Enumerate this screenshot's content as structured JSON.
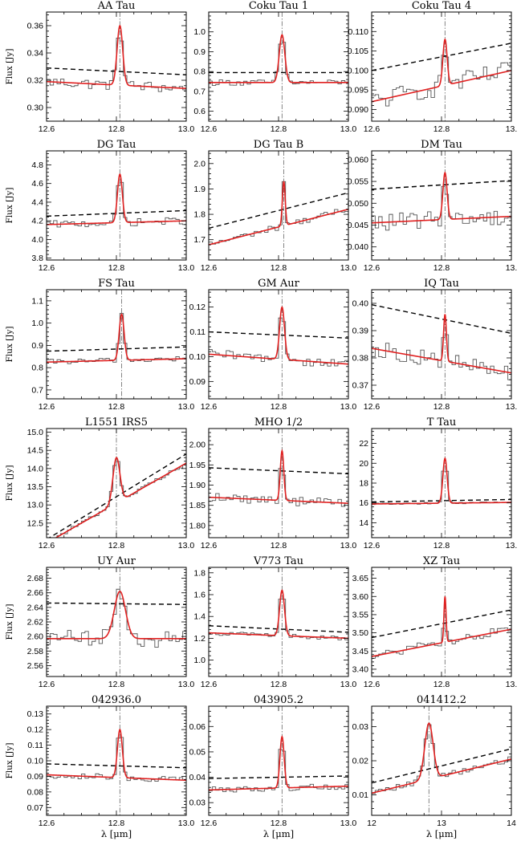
{
  "chart_data": [
    {
      "type": "line",
      "title": "AA Tau",
      "ylabel": "Flux [Jy]",
      "xlabel": "",
      "xlim": [
        12.6,
        13.0
      ],
      "ylim": [
        0.29,
        0.37
      ],
      "xticks": [
        12.6,
        12.8,
        13.0
      ],
      "xtick_labels": [
        "12.6",
        "12.8",
        "13.0"
      ],
      "yticks": [
        0.3,
        0.32,
        0.34,
        0.36
      ],
      "ytick_labels": [
        "0.30",
        "0.32",
        "0.34",
        "0.36"
      ],
      "line_center": 12.81,
      "line_width": 0.008,
      "continuum": [
        0.319,
        0.314
      ],
      "peak": 0.36,
      "dashed": [
        0.329,
        0.324
      ],
      "noise": 0.004
    },
    {
      "type": "line",
      "title": "Coku Tau 1",
      "ylabel": "",
      "xlabel": "",
      "xlim": [
        12.6,
        13.0
      ],
      "ylim": [
        0.55,
        1.1
      ],
      "xticks": [
        12.6,
        12.8,
        13.0
      ],
      "xtick_labels": [
        "12.6",
        "12.8",
        "13.0"
      ],
      "yticks": [
        0.6,
        0.7,
        0.8,
        0.9,
        1.0
      ],
      "ytick_labels": [
        "0.6",
        "0.7",
        "0.8",
        "0.9",
        "1.0"
      ],
      "line_center": 12.81,
      "line_width": 0.008,
      "continuum": [
        0.745,
        0.745
      ],
      "peak": 0.985,
      "dashed": [
        0.795,
        0.795
      ],
      "noise": 0.015
    },
    {
      "type": "line",
      "title": "Coku Tau 4",
      "ylabel": "",
      "xlabel": "",
      "xlim": [
        12.6,
        13.0
      ],
      "ylim": [
        0.087,
        0.115
      ],
      "xticks": [
        12.6,
        12.8,
        13.0
      ],
      "xtick_labels": [
        "12.6",
        "12.8",
        "13."
      ],
      "yticks": [
        0.09,
        0.095,
        0.1,
        0.105,
        0.11
      ],
      "ytick_labels": [
        "0.090",
        "0.095",
        "0.100",
        "0.105",
        "0.110"
      ],
      "line_center": 12.81,
      "line_width": 0.006,
      "continuum": [
        0.092,
        0.1
      ],
      "peak": 0.108,
      "dashed": [
        0.1,
        0.107
      ],
      "noise": 0.0025
    },
    {
      "type": "line",
      "title": "DG Tau",
      "ylabel": "Flux [Jy]",
      "xlabel": "",
      "xlim": [
        12.6,
        13.0
      ],
      "ylim": [
        3.78,
        4.95
      ],
      "xticks": [
        12.6,
        12.8,
        13.0
      ],
      "xtick_labels": [
        "12.6",
        "12.8",
        "13.0"
      ],
      "yticks": [
        3.8,
        4.0,
        4.2,
        4.4,
        4.6,
        4.8
      ],
      "ytick_labels": [
        "3.8",
        "4.0",
        "4.2",
        "4.4",
        "4.6",
        "4.8"
      ],
      "line_center": 12.81,
      "line_width": 0.007,
      "continuum": [
        4.16,
        4.2
      ],
      "peak": 4.7,
      "dashed": [
        4.25,
        4.31
      ],
      "noise": 0.04
    },
    {
      "type": "line",
      "title": "DG Tau B",
      "ylabel": "",
      "xlabel": "",
      "xlim": [
        12.6,
        13.0
      ],
      "ylim": [
        1.62,
        2.05
      ],
      "xticks": [
        12.6,
        12.8,
        13.0
      ],
      "xtick_labels": [
        "12.6",
        "12.8",
        "13.0"
      ],
      "yticks": [
        1.7,
        1.8,
        1.9,
        2.0
      ],
      "ytick_labels": [
        "1.7",
        "1.8",
        "1.9",
        "2.0"
      ],
      "line_center": 12.815,
      "line_width": 0.004,
      "continuum": [
        1.68,
        1.82
      ],
      "peak": 1.93,
      "dashed": [
        1.745,
        1.885
      ],
      "noise": 0.012
    },
    {
      "type": "line",
      "title": "DM Tau",
      "ylabel": "",
      "xlabel": "",
      "xlim": [
        12.6,
        13.0
      ],
      "ylim": [
        0.037,
        0.062
      ],
      "xticks": [
        12.6,
        12.8,
        13.0
      ],
      "xtick_labels": [
        "12.6",
        "12.8",
        "13."
      ],
      "yticks": [
        0.04,
        0.045,
        0.05,
        0.055,
        0.06
      ],
      "ytick_labels": [
        "0.040",
        "0.045",
        "0.050",
        "0.055",
        "0.060"
      ],
      "line_center": 12.81,
      "line_width": 0.006,
      "continuum": [
        0.0455,
        0.047
      ],
      "peak": 0.057,
      "dashed": [
        0.0532,
        0.0552
      ],
      "noise": 0.002
    },
    {
      "type": "line",
      "title": "FS Tau",
      "ylabel": "Flux [Jy]",
      "xlabel": "",
      "xlim": [
        12.6,
        13.0
      ],
      "ylim": [
        0.66,
        1.15
      ],
      "xticks": [
        12.6,
        12.8,
        13.0
      ],
      "xtick_labels": [
        "12.6",
        "12.8",
        "13.0"
      ],
      "yticks": [
        0.7,
        0.8,
        0.9,
        1.0,
        1.1
      ],
      "ytick_labels": [
        "0.7",
        "0.8",
        "0.9",
        "1.0",
        "1.1"
      ],
      "line_center": 12.815,
      "line_width": 0.007,
      "continuum": [
        0.825,
        0.84
      ],
      "peak": 1.04,
      "dashed": [
        0.874,
        0.893
      ],
      "noise": 0.012
    },
    {
      "type": "line",
      "title": "GM Aur",
      "ylabel": "",
      "xlabel": "",
      "xlim": [
        12.6,
        13.0
      ],
      "ylim": [
        0.083,
        0.127
      ],
      "xticks": [
        12.6,
        12.8,
        13.0
      ],
      "xtick_labels": [
        "12.6",
        "12.8",
        "13.0"
      ],
      "yticks": [
        0.09,
        0.1,
        0.11,
        0.12
      ],
      "ytick_labels": [
        "0.09",
        "0.10",
        "0.11",
        "0.12"
      ],
      "line_center": 12.81,
      "line_width": 0.007,
      "continuum": [
        0.101,
        0.097
      ],
      "peak": 0.12,
      "dashed": [
        0.11,
        0.1075
      ],
      "noise": 0.002
    },
    {
      "type": "line",
      "title": "IQ Tau",
      "ylabel": "",
      "xlabel": "",
      "xlim": [
        12.6,
        13.0
      ],
      "ylim": [
        0.365,
        0.405
      ],
      "xticks": [
        12.6,
        12.8,
        13.0
      ],
      "xtick_labels": [
        "12.6",
        "12.8",
        "13."
      ],
      "yticks": [
        0.37,
        0.38,
        0.39,
        0.4
      ],
      "ytick_labels": [
        "0.37",
        "0.38",
        "0.39",
        "0.40"
      ],
      "line_center": 12.81,
      "line_width": 0.004,
      "continuum": [
        0.3835,
        0.3745
      ],
      "peak": 0.396,
      "dashed": [
        0.3995,
        0.389
      ],
      "noise": 0.003
    },
    {
      "type": "line",
      "title": "L1551 IRS5",
      "ylabel": "Flux [Jy]",
      "xlabel": "",
      "xlim": [
        12.6,
        13.0
      ],
      "ylim": [
        12.1,
        15.1
      ],
      "xticks": [
        12.6,
        12.8,
        13.0
      ],
      "xtick_labels": [
        "12.6",
        "12.8",
        "13.0"
      ],
      "yticks": [
        12.5,
        13.0,
        13.5,
        14.0,
        14.5,
        15.0
      ],
      "ytick_labels": [
        "12.5",
        "13.0",
        "13.5",
        "14.0",
        "14.5",
        "15.0"
      ],
      "line_center": 12.8,
      "line_width": 0.01,
      "continuum": [
        11.95,
        14.15
      ],
      "peak": 14.3,
      "dashed": [
        12.05,
        14.4
      ],
      "noise": 0.05
    },
    {
      "type": "line",
      "title": "MHO 1/2",
      "ylabel": "",
      "xlabel": "",
      "xlim": [
        12.6,
        13.0
      ],
      "ylim": [
        1.77,
        2.04
      ],
      "xticks": [
        12.6,
        12.8,
        13.0
      ],
      "xtick_labels": [
        "12.6",
        "12.8",
        "13.0"
      ],
      "yticks": [
        1.8,
        1.85,
        1.9,
        1.95,
        2.0
      ],
      "ytick_labels": [
        "1.80",
        "1.85",
        "1.90",
        "1.95",
        "2.00"
      ],
      "line_center": 12.81,
      "line_width": 0.005,
      "continuum": [
        1.87,
        1.855
      ],
      "peak": 1.985,
      "dashed": [
        1.943,
        1.928
      ],
      "noise": 0.012
    },
    {
      "type": "line",
      "title": "T Tau",
      "ylabel": "",
      "xlabel": "",
      "xlim": [
        12.6,
        13.0
      ],
      "ylim": [
        12.5,
        23.5
      ],
      "xticks": [
        12.6,
        12.8,
        13.0
      ],
      "xtick_labels": [
        "12.6",
        "12.8",
        "13."
      ],
      "yticks": [
        14,
        16,
        18,
        20,
        22
      ],
      "ytick_labels": [
        "14",
        "16",
        "18",
        "20",
        "22"
      ],
      "line_center": 12.81,
      "line_width": 0.006,
      "continuum": [
        15.9,
        16.05
      ],
      "peak": 20.5,
      "dashed": [
        16.1,
        16.35
      ],
      "noise": 0.08
    },
    {
      "type": "line",
      "title": "UY Aur",
      "ylabel": "Flux [Jy]",
      "xlabel": "",
      "xlim": [
        12.6,
        13.0
      ],
      "ylim": [
        2.545,
        2.695
      ],
      "xticks": [
        12.6,
        12.8,
        13.0
      ],
      "xtick_labels": [
        "12.6",
        "12.8",
        "13.0"
      ],
      "yticks": [
        2.56,
        2.58,
        2.6,
        2.62,
        2.64,
        2.66,
        2.68
      ],
      "ytick_labels": [
        "2.56",
        "2.58",
        "2.60",
        "2.62",
        "2.64",
        "2.66",
        "2.68"
      ],
      "line_center": 12.81,
      "line_width": 0.016,
      "continuum": [
        2.597,
        2.597
      ],
      "peak": 2.662,
      "dashed": [
        2.646,
        2.644
      ],
      "noise": 0.012
    },
    {
      "type": "line",
      "title": "V773 Tau",
      "ylabel": "",
      "xlabel": "",
      "xlim": [
        12.6,
        13.0
      ],
      "ylim": [
        0.85,
        1.85
      ],
      "xticks": [
        12.6,
        12.8,
        13.0
      ],
      "xtick_labels": [
        "12.6",
        "12.8",
        "13.0"
      ],
      "yticks": [
        1.0,
        1.2,
        1.4,
        1.6,
        1.8
      ],
      "ytick_labels": [
        "1.0",
        "1.2",
        "1.4",
        "1.6",
        "1.8"
      ],
      "line_center": 12.81,
      "line_width": 0.007,
      "continuum": [
        1.25,
        1.2
      ],
      "peak": 1.64,
      "dashed": [
        1.315,
        1.255
      ],
      "noise": 0.02
    },
    {
      "type": "line",
      "title": "XZ Tau",
      "ylabel": "",
      "xlabel": "",
      "xlim": [
        12.6,
        13.0
      ],
      "ylim": [
        3.38,
        3.68
      ],
      "xticks": [
        12.6,
        12.8,
        13.0
      ],
      "xtick_labels": [
        "12.6",
        "12.8",
        "13."
      ],
      "yticks": [
        3.4,
        3.45,
        3.5,
        3.55,
        3.6,
        3.65
      ],
      "ytick_labels": [
        "3.40",
        "3.45",
        "3.50",
        "3.55",
        "3.60",
        "3.65"
      ],
      "line_center": 12.81,
      "line_width": 0.003,
      "continuum": [
        3.435,
        3.51
      ],
      "peak": 3.6,
      "dashed": [
        3.487,
        3.563
      ],
      "noise": 0.012
    },
    {
      "type": "line",
      "title": "042936.0",
      "ylabel": "Flux [Jy]",
      "xlabel": "λ [μm]",
      "xlim": [
        12.6,
        13.0
      ],
      "ylim": [
        0.065,
        0.135
      ],
      "xticks": [
        12.6,
        12.8,
        13.0
      ],
      "xtick_labels": [
        "12.6",
        "12.8",
        "13.0"
      ],
      "yticks": [
        0.07,
        0.08,
        0.09,
        0.1,
        0.11,
        0.12,
        0.13
      ],
      "ytick_labels": [
        "0.07",
        "0.08",
        "0.09",
        "0.10",
        "0.11",
        "0.12",
        "0.13"
      ],
      "line_center": 12.81,
      "line_width": 0.007,
      "continuum": [
        0.091,
        0.0875
      ],
      "peak": 0.12,
      "dashed": [
        0.098,
        0.0955
      ],
      "noise": 0.002
    },
    {
      "type": "line",
      "title": "043905.2",
      "ylabel": "",
      "xlabel": "λ [μm]",
      "xlim": [
        12.6,
        13.0
      ],
      "ylim": [
        0.025,
        0.068
      ],
      "xticks": [
        12.6,
        12.8,
        13.0
      ],
      "xtick_labels": [
        "12.6",
        "12.8",
        "13.0"
      ],
      "yticks": [
        0.03,
        0.04,
        0.05,
        0.06
      ],
      "ytick_labels": [
        "0.03",
        "0.04",
        "0.05",
        "0.06"
      ],
      "line_center": 12.81,
      "line_width": 0.006,
      "continuum": [
        0.035,
        0.0365
      ],
      "peak": 0.056,
      "dashed": [
        0.0395,
        0.0405
      ],
      "noise": 0.0012
    },
    {
      "type": "line",
      "title": "041412.2",
      "ylabel": "",
      "xlabel": "λ [μm]",
      "xlim": [
        12.0,
        14.0
      ],
      "ylim": [
        0.004,
        0.036
      ],
      "xticks": [
        12,
        13,
        14
      ],
      "xtick_labels": [
        "12",
        "13",
        "14"
      ],
      "yticks": [
        0.01,
        0.02,
        0.03
      ],
      "ytick_labels": [
        "0.01",
        "0.02",
        "0.03"
      ],
      "line_center": 12.82,
      "line_width": 0.06,
      "continuum": [
        0.0105,
        0.0205
      ],
      "peak": 0.031,
      "dashed": [
        0.0135,
        0.0235
      ],
      "noise": 0.0008
    }
  ]
}
